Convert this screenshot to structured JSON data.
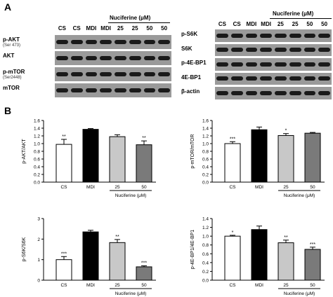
{
  "panel_a": {
    "letter": "A",
    "left_blot": {
      "lanes": [
        "CS",
        "CS",
        "MDI",
        "MDI",
        "25",
        "25",
        "50",
        "50"
      ],
      "treatment_header": "Nuciferine (μM)",
      "rows": [
        {
          "label": "p-AKT",
          "sub": "(Ser 473)"
        },
        {
          "label": "AKT",
          "sub": ""
        },
        {
          "label": "p-mTOR",
          "sub": "(Ser2448)"
        },
        {
          "label": "mTOR",
          "sub": ""
        }
      ]
    },
    "right_blot": {
      "lanes": [
        "CS",
        "CS",
        "MDI",
        "MDI",
        "25",
        "25",
        "50",
        "50"
      ],
      "treatment_header": "Nuciferine (μM)",
      "rows": [
        {
          "label": "p-S6K"
        },
        {
          "label": "S6K"
        },
        {
          "label": "p-4E-BP1"
        },
        {
          "label": "4E-BP1"
        },
        {
          "label": "β-actin"
        }
      ]
    }
  },
  "panel_b": {
    "letter": "B"
  },
  "chart_data": [
    {
      "type": "bar",
      "ylabel": "p-AKT/AKT",
      "categories": [
        "CS",
        "MDI",
        "25",
        "50"
      ],
      "values": [
        0.98,
        1.37,
        1.18,
        0.97
      ],
      "errors": [
        0.13,
        0.02,
        0.05,
        0.1
      ],
      "significance": [
        "**",
        "",
        "",
        "**"
      ],
      "colors": [
        "#ffffff",
        "#000000",
        "#c8c8c8",
        "#7a7a7a"
      ],
      "ylim": [
        0,
        1.6
      ],
      "yticks": [
        "0.0",
        "0.2",
        "0.4",
        "0.6",
        "0.8",
        "1.0",
        "1.2",
        "1.4",
        "1.6"
      ],
      "group_label": "Nuciferine (μM)"
    },
    {
      "type": "bar",
      "ylabel": "p-mTOR/mTOR",
      "categories": [
        "CS",
        "MDI",
        "25",
        "50"
      ],
      "values": [
        1.0,
        1.36,
        1.21,
        1.27
      ],
      "errors": [
        0.05,
        0.07,
        0.05,
        0.02
      ],
      "significance": [
        "***",
        "",
        "*",
        ""
      ],
      "colors": [
        "#ffffff",
        "#000000",
        "#c8c8c8",
        "#7a7a7a"
      ],
      "ylim": [
        0,
        1.6
      ],
      "yticks": [
        "0.0",
        "0.2",
        "0.4",
        "0.6",
        "0.8",
        "1.0",
        "1.2",
        "1.4",
        "1.6"
      ],
      "group_label": "Nuciferine (μM)"
    },
    {
      "type": "bar",
      "ylabel": "p-S6K/S6K",
      "categories": [
        "CS",
        "MDI",
        "25",
        "50"
      ],
      "values": [
        1.0,
        2.35,
        1.83,
        0.65
      ],
      "errors": [
        0.15,
        0.08,
        0.15,
        0.05
      ],
      "significance": [
        "***",
        "",
        "**",
        "***"
      ],
      "colors": [
        "#ffffff",
        "#000000",
        "#c8c8c8",
        "#7a7a7a"
      ],
      "ylim": [
        0,
        3
      ],
      "yticks": [
        "0",
        "1",
        "2",
        "3"
      ],
      "group_label": "Nuciferine (μM)"
    },
    {
      "type": "bar",
      "ylabel": "p-4E-BP1/4E-BP1",
      "categories": [
        "CS",
        "MDI",
        "25",
        "50"
      ],
      "values": [
        1.0,
        1.15,
        0.85,
        0.7
      ],
      "errors": [
        0.02,
        0.08,
        0.06,
        0.05
      ],
      "significance": [
        "*",
        "",
        "**",
        "***"
      ],
      "colors": [
        "#ffffff",
        "#000000",
        "#c8c8c8",
        "#7a7a7a"
      ],
      "ylim": [
        0,
        1.4
      ],
      "yticks": [
        "0.0",
        "0.2",
        "0.4",
        "0.6",
        "0.8",
        "1.0",
        "1.2",
        "1.4"
      ],
      "group_label": "Nuciferine (μM)"
    }
  ]
}
